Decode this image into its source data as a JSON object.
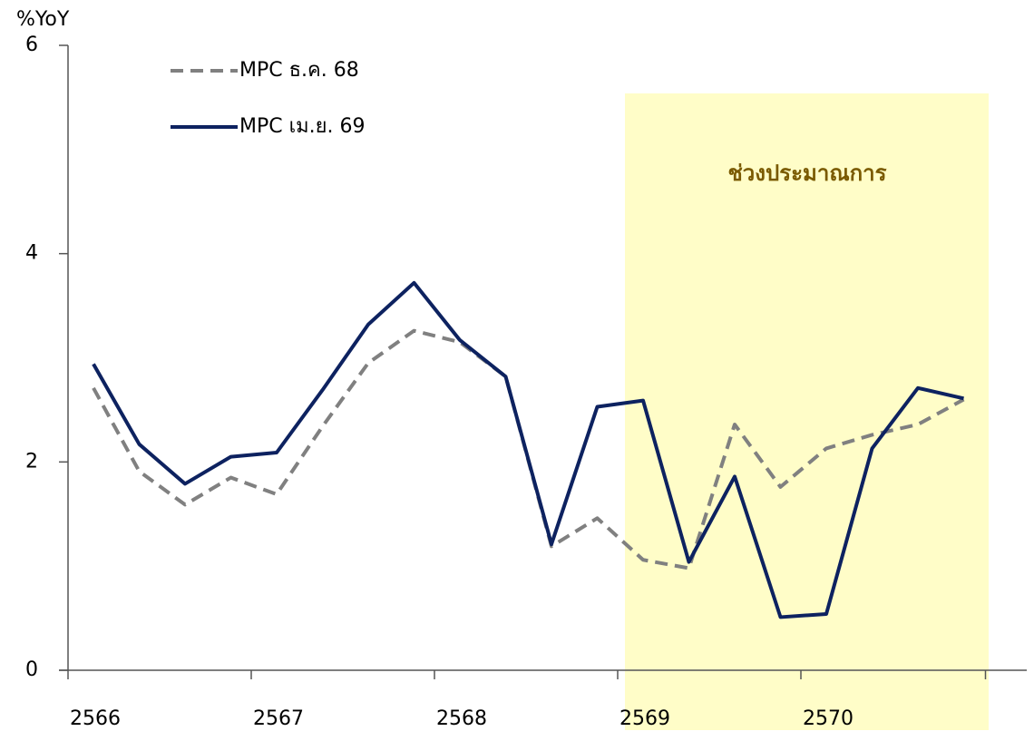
{
  "chart_data": {
    "type": "line",
    "y_label": "%YoY",
    "annotation": "ช่วงประมาณการ",
    "categories": [
      "2566",
      null,
      null,
      null,
      "2567",
      null,
      null,
      null,
      "2568",
      null,
      null,
      null,
      "2569",
      null,
      null,
      null,
      "2570",
      null,
      null,
      null
    ],
    "series": [
      {
        "name": "MPC ธ.ค. 68",
        "color": "#808080",
        "dash": true,
        "values": [
          2.71,
          1.91,
          1.59,
          1.85,
          1.69,
          2.34,
          2.95,
          3.26,
          3.15,
          2.82,
          1.19,
          1.46,
          1.06,
          0.98,
          2.36,
          1.76,
          2.13,
          2.26,
          2.36,
          2.6
        ]
      },
      {
        "name": "MPC เม.ย. 69",
        "color": "#0d2260",
        "dash": false,
        "values": [
          2.94,
          2.17,
          1.79,
          2.05,
          2.09,
          2.69,
          3.32,
          3.72,
          3.17,
          2.82,
          1.21,
          2.53,
          2.59,
          1.04,
          1.86,
          0.51,
          0.54,
          2.13,
          2.71,
          2.61
        ]
      }
    ],
    "ylim": [
      0,
      6
    ],
    "yticks": [
      0,
      2,
      4,
      6
    ],
    "grid": false
  }
}
